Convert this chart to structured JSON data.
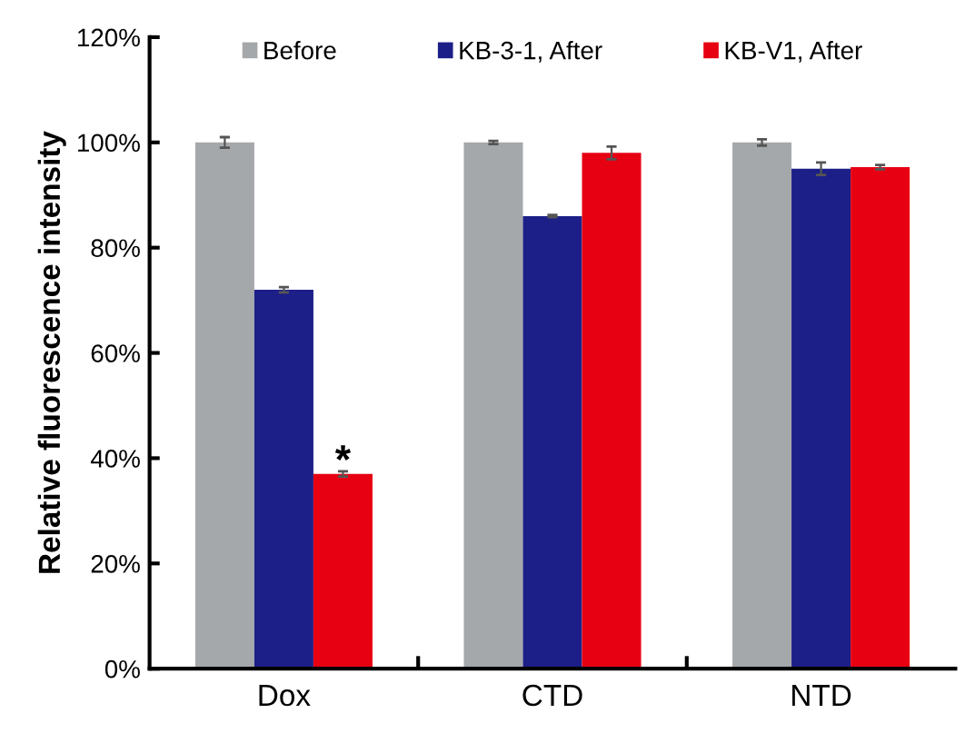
{
  "chart_data": {
    "type": "bar",
    "ylabel": "Relative fluorescence intensity",
    "categories": [
      "Dox",
      "CTD",
      "NTD"
    ],
    "series": [
      {
        "name": "Before",
        "color": "#a5a8ab",
        "values": [
          100,
          100,
          100
        ],
        "errors": [
          1,
          0.3,
          0.6
        ]
      },
      {
        "name": "KB-3-1, After",
        "color": "#1c1f87",
        "values": [
          72,
          86,
          95
        ],
        "errors": [
          0.5,
          0.2,
          1.2
        ]
      },
      {
        "name": "KB-V1, After",
        "color": "#e60012",
        "values": [
          37,
          98,
          95.3
        ],
        "errors": [
          0.5,
          1.2,
          0.4
        ]
      }
    ],
    "ylim": [
      0,
      120
    ],
    "yticks": [
      {
        "value": 0,
        "label": "0%"
      },
      {
        "value": 20,
        "label": "20%"
      },
      {
        "value": 40,
        "label": "40%"
      },
      {
        "value": 60,
        "label": "60%"
      },
      {
        "value": 80,
        "label": "80%"
      },
      {
        "value": 100,
        "label": "100%"
      },
      {
        "value": 120,
        "label": "120%"
      }
    ],
    "annotations": [
      "*"
    ],
    "legend": "top",
    "grid": false
  }
}
